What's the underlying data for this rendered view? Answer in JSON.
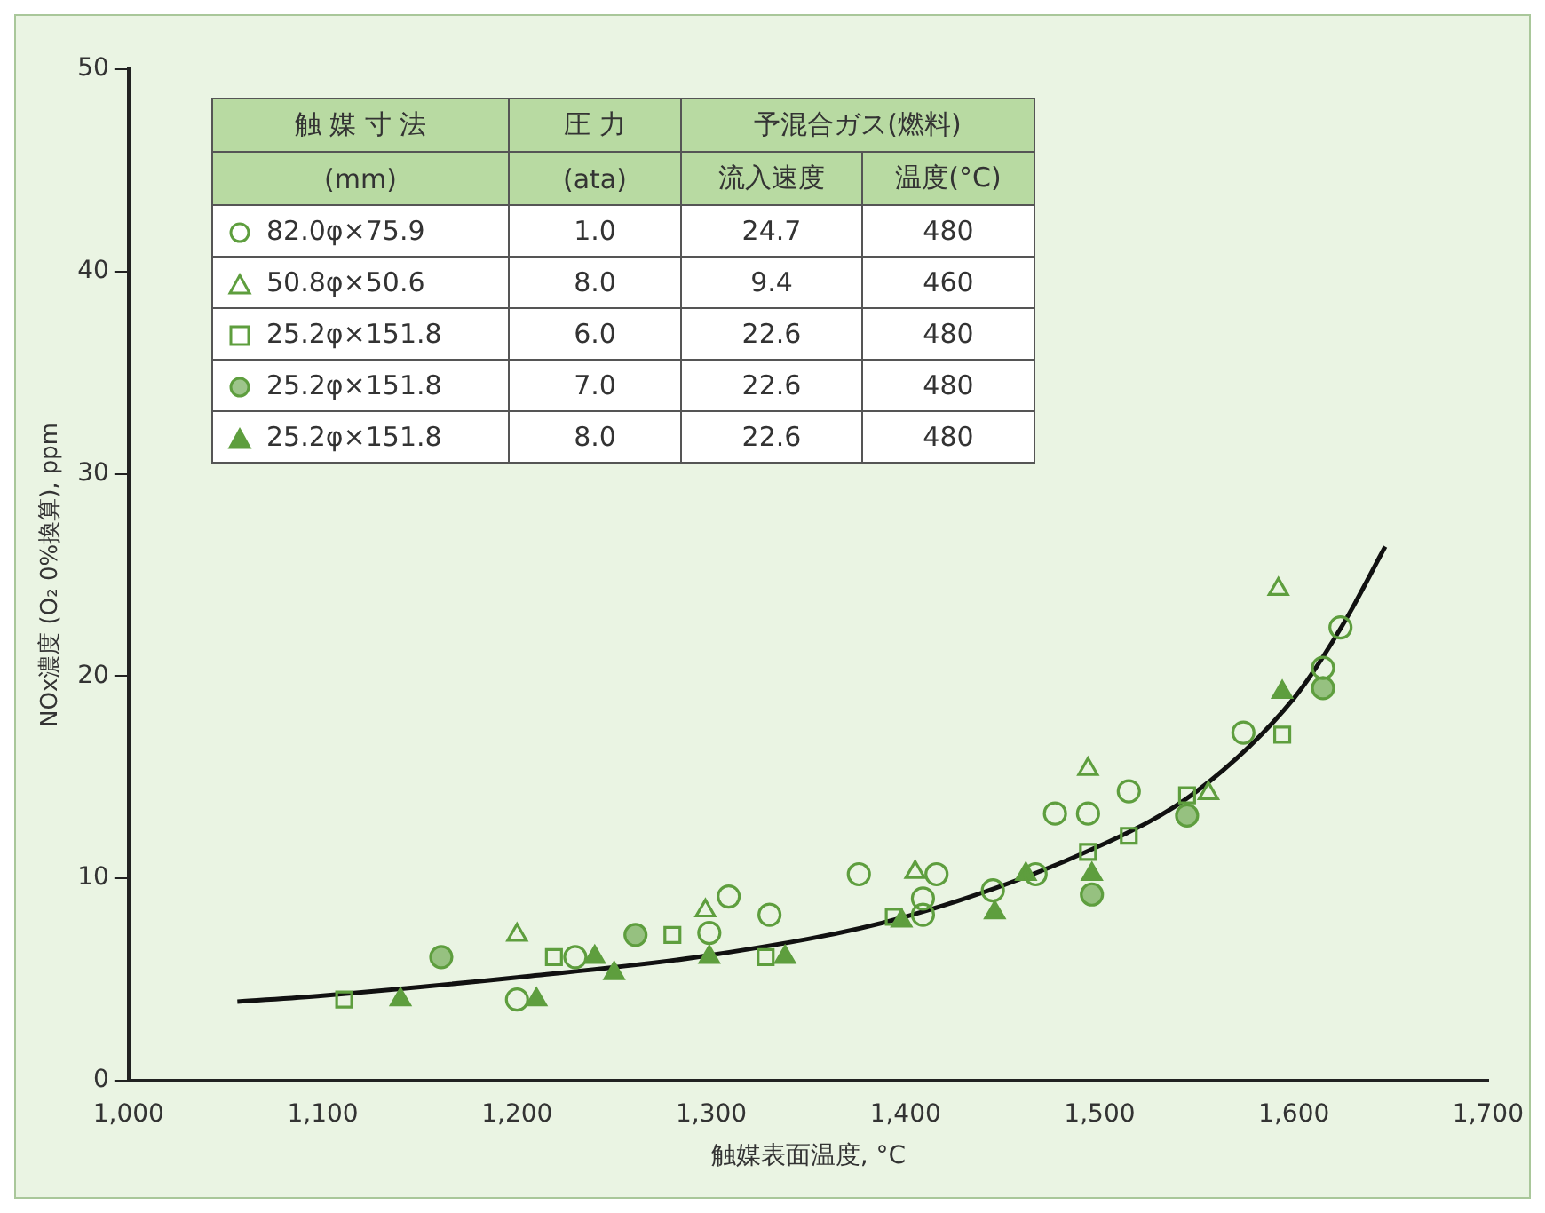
{
  "chart_data": {
    "type": "scatter",
    "xlabel": "触媒表面温度, °C",
    "ylabel": "NOx濃度 (O₂ 0%換算), ppm",
    "xlim": [
      1000,
      1700
    ],
    "ylim": [
      0,
      50
    ],
    "xticks": [
      {
        "value": 1000,
        "label": "1,000"
      },
      {
        "value": 1100,
        "label": "1,100"
      },
      {
        "value": 1200,
        "label": "1,200"
      },
      {
        "value": 1300,
        "label": "1,300"
      },
      {
        "value": 1400,
        "label": "1,400"
      },
      {
        "value": 1500,
        "label": "1,500"
      },
      {
        "value": 1600,
        "label": "1,600"
      },
      {
        "value": 1700,
        "label": "1,700"
      }
    ],
    "yticks": [
      0,
      10,
      20,
      30,
      40,
      50
    ],
    "grid": false,
    "legend": "top left",
    "annotations": [
      "触 媒 寸 法",
      "(mm)",
      "圧 力",
      "(ata)",
      "予混合ガス(燃料)",
      "流入速度",
      "温度(°C)",
      "1.0",
      "24.7",
      "480",
      "8.0",
      "9.4",
      "460",
      "6.0",
      "22.6",
      "480",
      "7.0",
      "22.6",
      "480",
      "8.0",
      "22.6",
      "480"
    ],
    "series": [
      {
        "name": "82.0φ×75.9",
        "color": "#5e9e3e",
        "marker": "circle",
        "x": [
          1200,
          1230,
          1299,
          1309,
          1330,
          1376,
          1409,
          1409,
          1416,
          1445,
          1467,
          1477,
          1494,
          1515,
          1574,
          1615,
          1624
        ],
        "values": [
          4.0,
          6.1,
          7.3,
          9.1,
          8.2,
          10.2,
          9.0,
          8.2,
          10.2,
          9.4,
          10.2,
          13.2,
          13.2,
          14.3,
          17.2,
          20.4,
          22.4
        ]
      },
      {
        "name": "50.8φ×50.6",
        "color": "#5e9e3e",
        "marker": "triangle",
        "x": [
          1200,
          1297,
          1405,
          1494,
          1556,
          1592
        ],
        "values": [
          7.2,
          8.4,
          10.3,
          15.4,
          14.2,
          24.3
        ]
      },
      {
        "name": "25.2φ×151.8",
        "color": "#5e9e3e",
        "marker": "square",
        "x": [
          1111,
          1219,
          1280,
          1328,
          1394,
          1494,
          1515,
          1545,
          1594
        ],
        "values": [
          4.0,
          6.1,
          7.2,
          6.1,
          8.1,
          11.3,
          12.1,
          14.1,
          17.1
        ]
      },
      {
        "name": "25.2φ×151.8",
        "color": "#5e9e3e",
        "marker": "circle",
        "x": [
          1161,
          1261,
          1496,
          1545,
          1615
        ],
        "values": [
          6.1,
          7.2,
          9.2,
          13.1,
          19.4
        ]
      },
      {
        "name": "25.2φ×151.8",
        "color": "#5e9e3e",
        "marker": "triangle",
        "x": [
          1140,
          1210,
          1240,
          1250,
          1299,
          1338,
          1398,
          1446,
          1462,
          1496,
          1594
        ],
        "values": [
          4.0,
          4.0,
          6.1,
          5.3,
          6.1,
          6.1,
          7.9,
          8.3,
          10.2,
          10.2,
          19.2
        ]
      },
      {
        "type": "line",
        "color": "#111111",
        "marker": "none",
        "x": [
          1056,
          1100,
          1200,
          1300,
          1400,
          1500,
          1550,
          1600,
          1625,
          1647
        ],
        "values": [
          3.9,
          4.2,
          5.1,
          6.2,
          8.1,
          11.6,
          14.3,
          18.9,
          22.5,
          26.4
        ]
      }
    ]
  }
}
